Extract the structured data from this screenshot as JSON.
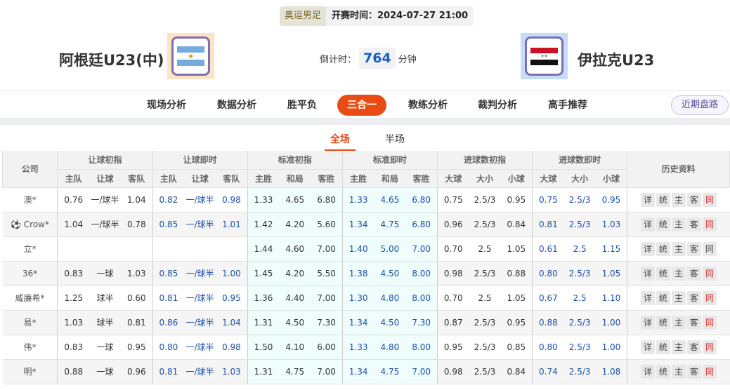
{
  "match": {
    "league": "奥运男足",
    "start_time": "开赛时间：2024-07-27 21:00",
    "home": "阿根廷U23(中)",
    "away": "伊拉克U23",
    "countdown_label": "倒计时：",
    "countdown_value": "764",
    "countdown_unit": "分钟"
  },
  "nav": {
    "tabs": [
      "现场分析",
      "数据分析",
      "胜平负",
      "三合一",
      "教练分析",
      "裁判分析",
      "高手推荐"
    ],
    "active": "三合一",
    "recent": "近期盘路"
  },
  "subtabs": {
    "items": [
      "全场",
      "半场"
    ],
    "active": "全场"
  },
  "table": {
    "company": "公司",
    "groups": [
      "让球初指",
      "让球即时",
      "标准初指",
      "标准即时",
      "进球数初指",
      "进球数即时"
    ],
    "history": "历史资料",
    "subheaders": [
      [
        "主队",
        "让球",
        "客队"
      ],
      [
        "主队",
        "让球",
        "客队"
      ],
      [
        "主胜",
        "和局",
        "客胜"
      ],
      [
        "主胜",
        "和局",
        "客胜"
      ],
      [
        "大球",
        "大小",
        "小球"
      ],
      [
        "大球",
        "大小",
        "小球"
      ]
    ],
    "history_buttons": [
      "详",
      "统",
      "主",
      "客",
      "同"
    ],
    "rows": [
      {
        "company": "澳*",
        "icon": false,
        "vals": [
          "0.76",
          "一/球半",
          "1.04",
          "0.82",
          "一/球半",
          "0.98",
          "1.33",
          "4.65",
          "6.80",
          "1.33",
          "4.65",
          "6.80",
          "0.75",
          "2.5/3",
          "0.95",
          "0.75",
          "2.5/3",
          "0.95"
        ],
        "same_red": true
      },
      {
        "company": "Crow*",
        "icon": true,
        "vals": [
          "1.04",
          "一/球半",
          "0.78",
          "0.85",
          "一/球半",
          "1.01",
          "1.42",
          "4.20",
          "5.60",
          "1.34",
          "4.75",
          "6.80",
          "0.96",
          "2.5/3",
          "0.84",
          "0.81",
          "2.5/3",
          "1.03"
        ],
        "same_red": true
      },
      {
        "company": "立*",
        "icon": false,
        "vals": [
          "",
          "",
          "",
          "",
          "",
          "",
          "1.44",
          "4.60",
          "7.00",
          "1.40",
          "5.00",
          "7.00",
          "0.70",
          "2.5",
          "1.05",
          "0.61",
          "2.5",
          "1.15"
        ],
        "same_red": false
      },
      {
        "company": "36*",
        "icon": false,
        "vals": [
          "0.83",
          "一球",
          "1.03",
          "0.85",
          "一/球半",
          "1.00",
          "1.45",
          "4.20",
          "5.50",
          "1.38",
          "4.50",
          "8.00",
          "0.98",
          "2.5/3",
          "0.88",
          "0.80",
          "2.5/3",
          "1.05"
        ],
        "same_red": true
      },
      {
        "company": "威廉希*",
        "icon": false,
        "vals": [
          "1.25",
          "球半",
          "0.60",
          "0.81",
          "一/球半",
          "0.95",
          "1.36",
          "4.40",
          "7.00",
          "1.30",
          "4.80",
          "8.00",
          "0.70",
          "2.5",
          "1.05",
          "0.67",
          "2.5",
          "1.10"
        ],
        "same_red": true
      },
      {
        "company": "易*",
        "icon": false,
        "vals": [
          "1.03",
          "球半",
          "0.81",
          "0.86",
          "一/球半",
          "1.04",
          "1.31",
          "4.50",
          "7.30",
          "1.34",
          "4.50",
          "7.30",
          "0.87",
          "2.5/3",
          "0.95",
          "0.88",
          "2.5/3",
          "1.00"
        ],
        "same_red": true
      },
      {
        "company": "伟*",
        "icon": false,
        "vals": [
          "0.83",
          "一球",
          "0.95",
          "0.80",
          "一/球半",
          "0.98",
          "1.50",
          "4.10",
          "6.00",
          "1.33",
          "4.80",
          "8.00",
          "0.95",
          "2.5/3",
          "0.85",
          "0.80",
          "2.5/3",
          "1.00"
        ],
        "same_red": true
      },
      {
        "company": "明*",
        "icon": false,
        "vals": [
          "0.88",
          "一球",
          "0.96",
          "0.81",
          "一/球半",
          "1.03",
          "1.31",
          "4.75",
          "7.00",
          "1.34",
          "4.75",
          "7.00",
          "0.98",
          "2.5/3",
          "0.84",
          "0.74",
          "2.5/3",
          "1.08"
        ],
        "same_red": true
      }
    ]
  }
}
